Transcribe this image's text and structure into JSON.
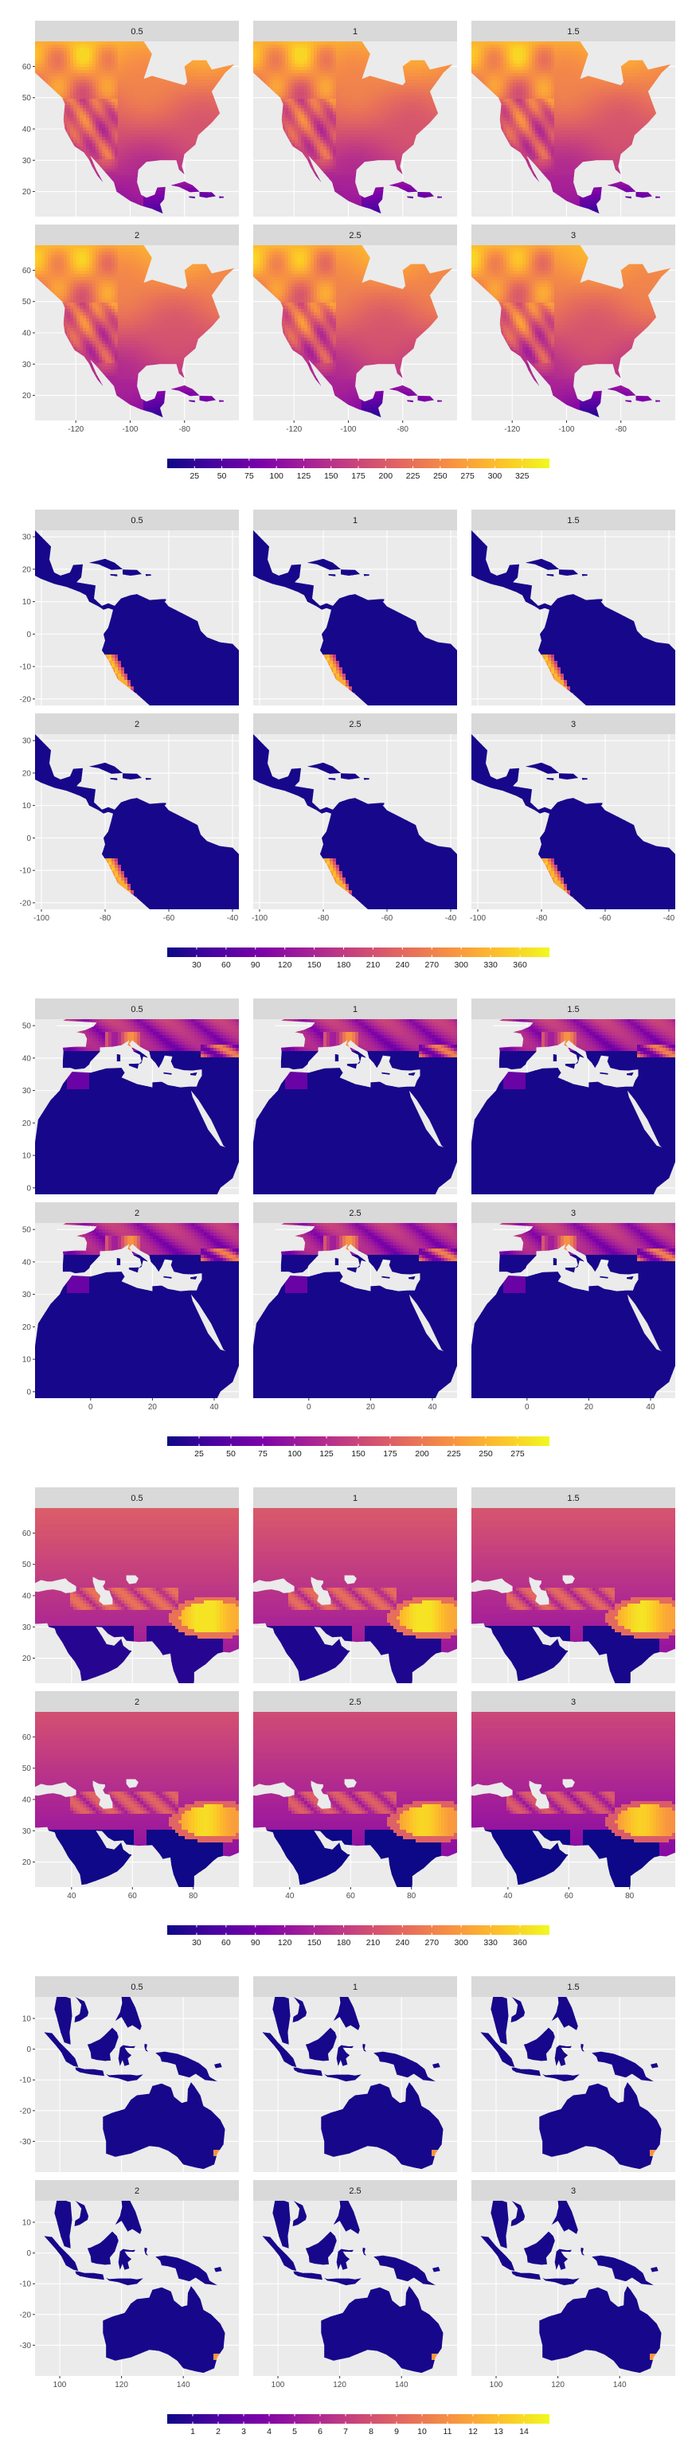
{
  "colors": {
    "panel_bg": "#ebebeb",
    "strip_bg": "#d9d9d9",
    "grid": "#ffffff",
    "palette": "plasma"
  },
  "chart_data": [
    {
      "type": "heatmap",
      "region": "north-america",
      "facets": [
        "0.5",
        "1",
        "1.5",
        "2",
        "2.5",
        "3"
      ],
      "facet_layout": [
        2,
        3
      ],
      "xlim": [
        -135,
        -60
      ],
      "ylim": [
        12,
        68
      ],
      "x_ticks": [
        -120,
        -100,
        -80
      ],
      "y_ticks": [
        20,
        30,
        40,
        50,
        60
      ],
      "x_tick_labels": [
        "-120",
        "-100",
        "-80"
      ],
      "y_tick_labels": [
        "20",
        "30",
        "40",
        "50",
        "60"
      ],
      "title": "",
      "xlabel": "",
      "ylabel": "",
      "legend": {
        "position": "bottom",
        "range": [
          0,
          350
        ],
        "labels": [
          "25",
          "50",
          "75",
          "100",
          "125",
          "150",
          "175",
          "200",
          "225",
          "250",
          "275",
          "300",
          "325"
        ]
      }
    },
    {
      "type": "heatmap",
      "region": "south-america",
      "facets": [
        "0.5",
        "1",
        "1.5",
        "2",
        "2.5",
        "3"
      ],
      "facet_layout": [
        2,
        3
      ],
      "xlim": [
        -102,
        -38
      ],
      "ylim": [
        -22,
        32
      ],
      "x_ticks": [
        -100,
        -80,
        -60,
        -40
      ],
      "y_ticks": [
        -20,
        -10,
        0,
        10,
        20,
        30
      ],
      "x_tick_labels": [
        "-100",
        "-80",
        "-60",
        "-40"
      ],
      "y_tick_labels": [
        "-20",
        "-10",
        "0",
        "10",
        "20",
        "30"
      ],
      "title": "",
      "xlabel": "",
      "ylabel": "",
      "legend": {
        "position": "bottom",
        "range": [
          0,
          390
        ],
        "labels": [
          "30",
          "60",
          "90",
          "120",
          "150",
          "180",
          "210",
          "240",
          "270",
          "300",
          "330",
          "360"
        ]
      }
    },
    {
      "type": "heatmap",
      "region": "europe-africa",
      "facets": [
        "0.5",
        "1",
        "1.5",
        "2",
        "2.5",
        "3"
      ],
      "facet_layout": [
        2,
        3
      ],
      "xlim": [
        -18,
        48
      ],
      "ylim": [
        -2,
        52
      ],
      "x_ticks": [
        0,
        20,
        40
      ],
      "y_ticks": [
        0,
        10,
        20,
        30,
        40,
        50
      ],
      "x_tick_labels": [
        "0",
        "20",
        "40"
      ],
      "y_tick_labels": [
        "0",
        "10",
        "20",
        "30",
        "40",
        "50"
      ],
      "title": "",
      "xlabel": "",
      "ylabel": "",
      "legend": {
        "position": "bottom",
        "range": [
          0,
          300
        ],
        "labels": [
          "25",
          "50",
          "75",
          "100",
          "125",
          "150",
          "175",
          "200",
          "225",
          "250",
          "275"
        ]
      }
    },
    {
      "type": "heatmap",
      "region": "asia",
      "facets": [
        "0.5",
        "1",
        "1.5",
        "2",
        "2.5",
        "3"
      ],
      "facet_layout": [
        2,
        3
      ],
      "xlim": [
        28,
        95
      ],
      "ylim": [
        12,
        68
      ],
      "x_ticks": [
        40,
        60,
        80
      ],
      "y_ticks": [
        20,
        30,
        40,
        50,
        60
      ],
      "x_tick_labels": [
        "40",
        "60",
        "80"
      ],
      "y_tick_labels": [
        "20",
        "30",
        "40",
        "50",
        "60"
      ],
      "title": "",
      "xlabel": "",
      "ylabel": "",
      "legend": {
        "position": "bottom",
        "range": [
          0,
          390
        ],
        "labels": [
          "30",
          "60",
          "90",
          "120",
          "150",
          "180",
          "210",
          "240",
          "270",
          "300",
          "330",
          "360"
        ]
      }
    },
    {
      "type": "heatmap",
      "region": "oceania",
      "facets": [
        "0.5",
        "1",
        "1.5",
        "2",
        "2.5",
        "3"
      ],
      "facet_layout": [
        2,
        3
      ],
      "xlim": [
        92,
        158
      ],
      "ylim": [
        -40,
        17
      ],
      "x_ticks": [
        100,
        120,
        140
      ],
      "y_ticks": [
        -30,
        -20,
        -10,
        0,
        10
      ],
      "x_tick_labels": [
        "100",
        "120",
        "140"
      ],
      "y_tick_labels": [
        "-30",
        "-20",
        "-10",
        "0",
        "10"
      ],
      "title": "",
      "xlabel": "",
      "ylabel": "",
      "legend": {
        "position": "bottom",
        "range": [
          0,
          15
        ],
        "labels": [
          "1",
          "2",
          "3",
          "4",
          "5",
          "6",
          "7",
          "8",
          "9",
          "10",
          "11",
          "12",
          "13",
          "14"
        ]
      }
    }
  ]
}
